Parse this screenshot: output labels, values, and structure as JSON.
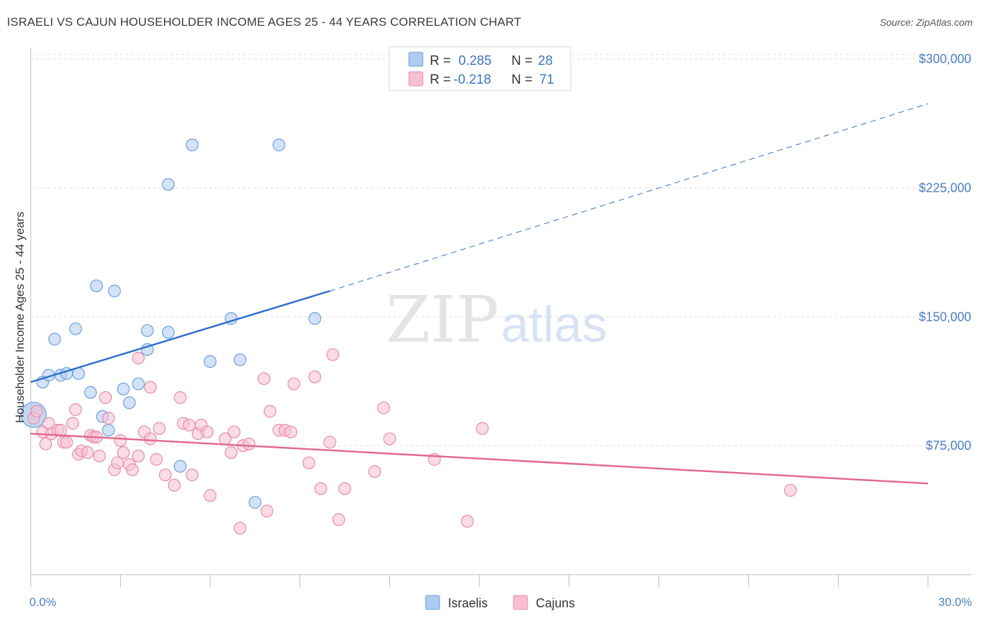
{
  "title": "ISRAELI VS CAJUN HOUSEHOLDER INCOME AGES 25 - 44 YEARS CORRELATION CHART",
  "source": "Source: ZipAtlas.com",
  "watermark": {
    "zip": "ZIP",
    "atlas": "atlas"
  },
  "colors": {
    "israelis_fill": "#aecbf0",
    "israelis_stroke": "#6a9fdc",
    "israelis_line": "#2e6fcb",
    "cajuns_fill": "#f7bfd1",
    "cajuns_stroke": "#e68aab",
    "cajuns_line": "#e2698f",
    "tick_label": "#4a7fc4",
    "grid": "#dddddd"
  },
  "legend": {
    "rows": [
      {
        "r_label": "R =",
        "r_value": "0.285",
        "n_label": "N =",
        "n_value": "28"
      },
      {
        "r_label": "R =",
        "r_value": "-0.218",
        "n_label": "N =",
        "n_value": "71"
      }
    ]
  },
  "chart_data": {
    "type": "scatter",
    "ylabel": "Householder Income Ages 25 - 44 years",
    "xlim": [
      0.0,
      30.0
    ],
    "ylim": [
      0,
      310000
    ],
    "x_tick_labels": [
      "0.0%",
      "30.0%"
    ],
    "y_ticks": [
      75000,
      150000,
      225000,
      300000
    ],
    "y_tick_labels": [
      "$75,000",
      "$150,000",
      "$225,000",
      "$300,000"
    ],
    "grid": true,
    "legend_position": "top-center",
    "series": [
      {
        "name": "Israelis",
        "r": 0.285,
        "n": 28,
        "trend": {
          "x0": 0.0,
          "y0": 112000,
          "x1": 10.0,
          "y1": 165000,
          "x_dash_end": 30.0,
          "y_dash_end": 274000
        },
        "points": [
          [
            0.1,
            93000
          ],
          [
            0.4,
            112000
          ],
          [
            0.6,
            116000
          ],
          [
            0.8,
            137000
          ],
          [
            1.0,
            116000
          ],
          [
            1.2,
            117000
          ],
          [
            1.6,
            117000
          ],
          [
            1.5,
            143000
          ],
          [
            2.0,
            106000
          ],
          [
            2.2,
            168000
          ],
          [
            2.4,
            92000
          ],
          [
            2.6,
            84000
          ],
          [
            2.8,
            165000
          ],
          [
            3.1,
            108000
          ],
          [
            3.3,
            100000
          ],
          [
            3.6,
            111000
          ],
          [
            3.9,
            131000
          ],
          [
            3.9,
            142000
          ],
          [
            4.6,
            141000
          ],
          [
            4.6,
            227000
          ],
          [
            5.0,
            63000
          ],
          [
            5.4,
            250000
          ],
          [
            6.0,
            124000
          ],
          [
            6.7,
            149000
          ],
          [
            7.0,
            125000
          ],
          [
            7.5,
            42000
          ],
          [
            8.3,
            250000
          ],
          [
            9.5,
            149000
          ]
        ]
      },
      {
        "name": "Cajuns",
        "r": -0.218,
        "n": 71,
        "trend": {
          "x0": 0.0,
          "y0": 82000,
          "x1": 30.0,
          "y1": 53000
        },
        "points": [
          [
            0.1,
            91000
          ],
          [
            0.2,
            95000
          ],
          [
            0.4,
            83000
          ],
          [
            0.5,
            76000
          ],
          [
            0.6,
            88000
          ],
          [
            0.7,
            82000
          ],
          [
            0.9,
            84000
          ],
          [
            1.0,
            84000
          ],
          [
            1.1,
            77000
          ],
          [
            1.2,
            77000
          ],
          [
            1.4,
            88000
          ],
          [
            1.5,
            96000
          ],
          [
            1.6,
            70000
          ],
          [
            1.7,
            72000
          ],
          [
            1.9,
            71000
          ],
          [
            2.0,
            81000
          ],
          [
            2.1,
            80000
          ],
          [
            2.2,
            80000
          ],
          [
            2.3,
            69000
          ],
          [
            2.5,
            103000
          ],
          [
            2.6,
            91000
          ],
          [
            2.8,
            61000
          ],
          [
            2.9,
            65000
          ],
          [
            3.0,
            78000
          ],
          [
            3.1,
            71000
          ],
          [
            3.3,
            64000
          ],
          [
            3.4,
            61000
          ],
          [
            3.6,
            126000
          ],
          [
            3.6,
            69000
          ],
          [
            3.8,
            83000
          ],
          [
            4.0,
            79000
          ],
          [
            4.0,
            109000
          ],
          [
            4.2,
            67000
          ],
          [
            4.3,
            85000
          ],
          [
            4.5,
            58000
          ],
          [
            4.8,
            52000
          ],
          [
            5.0,
            103000
          ],
          [
            5.1,
            88000
          ],
          [
            5.3,
            87000
          ],
          [
            5.4,
            58000
          ],
          [
            5.6,
            82000
          ],
          [
            5.7,
            87000
          ],
          [
            5.9,
            83000
          ],
          [
            6.0,
            46000
          ],
          [
            6.5,
            79000
          ],
          [
            6.7,
            71000
          ],
          [
            6.8,
            83000
          ],
          [
            7.0,
            27000
          ],
          [
            7.1,
            75000
          ],
          [
            7.3,
            76000
          ],
          [
            7.8,
            114000
          ],
          [
            7.9,
            37000
          ],
          [
            8.0,
            95000
          ],
          [
            8.3,
            84000
          ],
          [
            8.5,
            84000
          ],
          [
            8.7,
            83000
          ],
          [
            8.8,
            111000
          ],
          [
            9.3,
            65000
          ],
          [
            9.5,
            115000
          ],
          [
            9.7,
            50000
          ],
          [
            10.0,
            77000
          ],
          [
            10.1,
            128000
          ],
          [
            10.3,
            32000
          ],
          [
            10.5,
            50000
          ],
          [
            11.5,
            60000
          ],
          [
            11.8,
            97000
          ],
          [
            12.0,
            79000
          ],
          [
            13.5,
            67000
          ],
          [
            14.6,
            31000
          ],
          [
            15.1,
            85000
          ],
          [
            25.4,
            49000
          ]
        ]
      }
    ]
  }
}
